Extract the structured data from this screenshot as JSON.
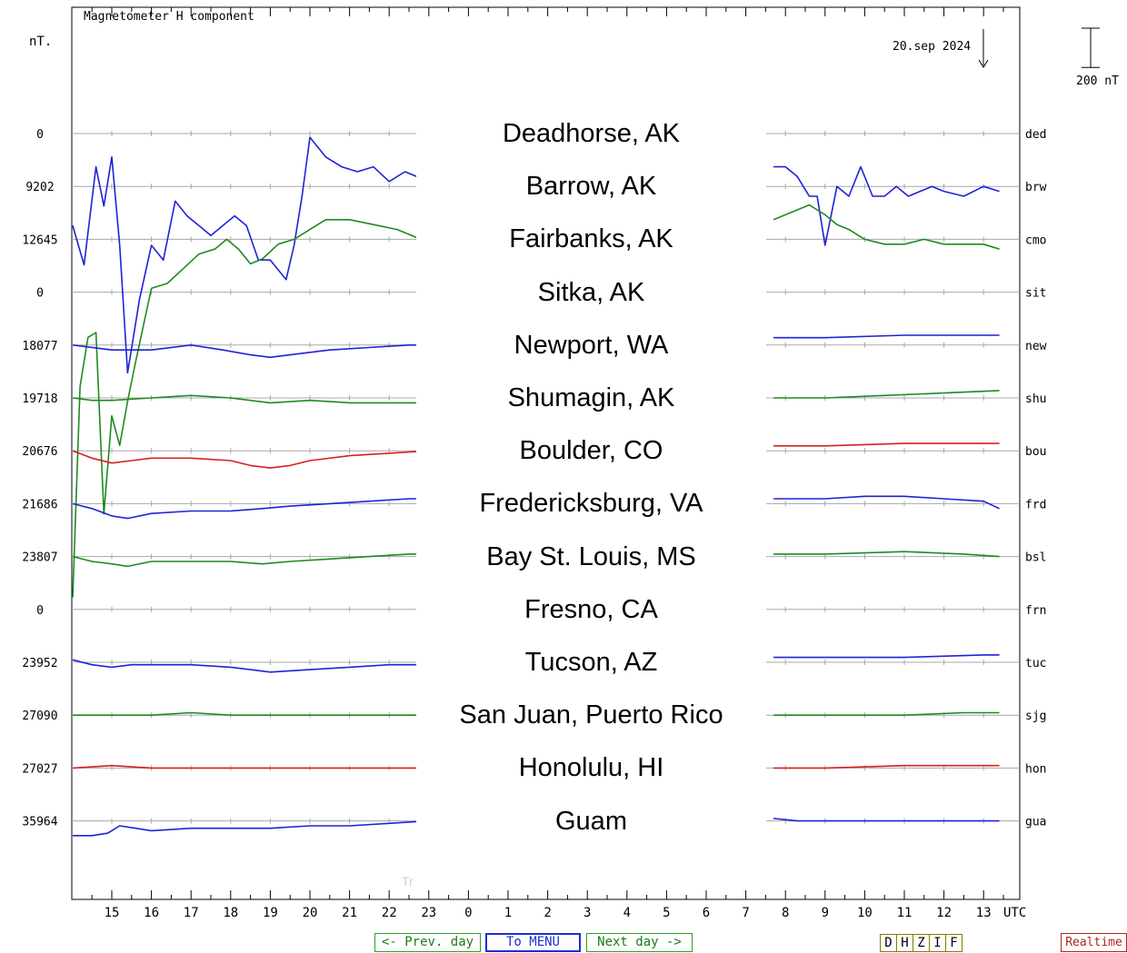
{
  "chart_data": {
    "type": "line",
    "title": "Magnetometer H component",
    "unit_label": "nT.",
    "date_label": "20.sep 2024",
    "scale_label": "200 nT",
    "x_ticks": [
      "15",
      "16",
      "17",
      "18",
      "19",
      "20",
      "21",
      "22",
      "23",
      "0",
      "1",
      "2",
      "3",
      "4",
      "5",
      "6",
      "7",
      "8",
      "9",
      "10",
      "11",
      "12",
      "13"
    ],
    "x_unit": "UTC",
    "scale_nT": 200,
    "series": [
      {
        "code": "ded",
        "baseline": "0",
        "color": "#808080",
        "wave": null
      },
      {
        "code": "brw",
        "baseline": "9202",
        "color": "#1f22d8",
        "wave": "storm",
        "x": [
          14.0,
          14.3,
          14.6,
          14.8,
          15.0,
          15.2,
          15.4,
          15.7,
          16.0,
          16.3,
          16.6,
          16.9,
          17.2,
          17.5,
          17.8,
          18.1,
          18.4,
          18.7,
          19.0,
          19.4,
          19.6,
          19.8,
          20.0,
          20.4,
          20.8,
          21.2,
          21.6,
          22.0,
          22.4,
          22.7,
          23.0,
          31.7,
          32.0,
          32.3,
          32.6,
          32.8,
          33.0,
          33.3,
          33.6,
          33.9,
          34.2,
          34.5,
          34.8,
          35.1,
          35.4,
          35.7,
          36.0,
          36.5,
          37.0,
          37.4
        ],
        "y": [
          -80,
          -160,
          40,
          -40,
          60,
          -120,
          -380,
          -230,
          -120,
          -150,
          -30,
          -60,
          -80,
          -100,
          -80,
          -60,
          -80,
          -150,
          -150,
          -190,
          -120,
          -20,
          100,
          60,
          40,
          30,
          40,
          10,
          30,
          20,
          40,
          40,
          40,
          20,
          -20,
          -20,
          -120,
          0,
          -20,
          40,
          -20,
          -20,
          0,
          -20,
          -10,
          0,
          -10,
          -20,
          0,
          -10
        ]
      },
      {
        "code": "cmo",
        "baseline": "12645",
        "color": "#1f8a1f",
        "wave": "storm",
        "x": [
          14.0,
          14.2,
          14.4,
          14.6,
          14.8,
          15.0,
          15.2,
          15.4,
          15.6,
          16.0,
          16.4,
          16.8,
          17.2,
          17.6,
          17.9,
          18.2,
          18.5,
          18.8,
          19.2,
          19.6,
          20.0,
          20.4,
          21.0,
          21.6,
          22.2,
          22.8,
          23.0,
          31.7,
          32.0,
          32.3,
          32.6,
          32.8,
          33.0,
          33.3,
          33.6,
          34.0,
          34.5,
          35.0,
          35.5,
          36.0,
          36.5,
          37.0,
          37.4
        ],
        "y": [
          -730,
          -300,
          -200,
          -190,
          -560,
          -360,
          -420,
          -330,
          -250,
          -100,
          -90,
          -60,
          -30,
          -20,
          0,
          -20,
          -50,
          -40,
          -10,
          0,
          20,
          40,
          40,
          30,
          20,
          0,
          0,
          40,
          50,
          60,
          70,
          60,
          50,
          30,
          20,
          0,
          -10,
          -10,
          0,
          -10,
          -10,
          -10,
          -20
        ]
      },
      {
        "code": "sit",
        "baseline": "0",
        "color": "#808080",
        "wave": null
      },
      {
        "code": "new",
        "baseline": "18077",
        "color": "#1f22d8",
        "wave": "quiet",
        "x": [
          14.0,
          15.0,
          16.0,
          17.0,
          17.8,
          18.5,
          19.0,
          19.5,
          20.5,
          21.5,
          22.5,
          23.0,
          31.7,
          33.0,
          35.0,
          37.0,
          37.4
        ],
        "y": [
          0,
          -10,
          -10,
          0,
          -10,
          -20,
          -25,
          -20,
          -10,
          -5,
          0,
          0,
          15,
          15,
          20,
          20,
          20
        ]
      },
      {
        "code": "shu",
        "baseline": "19718",
        "color": "#1f8a1f",
        "wave": "quiet",
        "x": [
          14.0,
          14.5,
          15.0,
          16.0,
          17.0,
          18.0,
          19.0,
          20.0,
          21.0,
          22.0,
          23.0,
          31.7,
          33.0,
          34.5,
          36.0,
          37.4
        ],
        "y": [
          0,
          -5,
          -5,
          0,
          5,
          0,
          -10,
          -5,
          -10,
          -10,
          -10,
          0,
          0,
          5,
          10,
          15
        ]
      },
      {
        "code": "bou",
        "baseline": "20676",
        "color": "#d62020",
        "wave": "quiet",
        "x": [
          14.0,
          14.5,
          15.0,
          15.5,
          16.0,
          17.0,
          18.0,
          18.5,
          19.0,
          19.5,
          20.0,
          21.0,
          22.0,
          23.0,
          31.7,
          33.0,
          35.0,
          37.4
        ],
        "y": [
          0,
          -15,
          -25,
          -20,
          -15,
          -15,
          -20,
          -30,
          -35,
          -30,
          -20,
          -10,
          -5,
          0,
          10,
          10,
          15,
          15
        ]
      },
      {
        "code": "frd",
        "baseline": "21686",
        "color": "#1f22d8",
        "wave": "quiet",
        "x": [
          14.0,
          14.5,
          15.0,
          15.4,
          16.0,
          17.0,
          18.0,
          18.8,
          19.5,
          20.5,
          21.5,
          22.5,
          23.0,
          31.7,
          33.0,
          34.0,
          35.0,
          36.0,
          37.0,
          37.4
        ],
        "y": [
          0,
          -10,
          -25,
          -30,
          -20,
          -15,
          -15,
          -10,
          -5,
          0,
          5,
          10,
          10,
          10,
          10,
          15,
          15,
          10,
          5,
          -10
        ]
      },
      {
        "code": "bsl",
        "baseline": "23807",
        "color": "#1f8a1f",
        "wave": "quiet",
        "x": [
          14.0,
          14.5,
          15.0,
          15.4,
          16.0,
          17.0,
          18.0,
          18.8,
          19.5,
          20.5,
          21.5,
          22.5,
          23.0,
          31.7,
          33.0,
          35.0,
          36.5,
          37.4
        ],
        "y": [
          0,
          -10,
          -15,
          -20,
          -10,
          -10,
          -10,
          -15,
          -10,
          -5,
          0,
          5,
          5,
          5,
          5,
          10,
          5,
          0
        ]
      },
      {
        "code": "frn",
        "baseline": "0",
        "color": "#808080",
        "wave": null
      },
      {
        "code": "tuc",
        "baseline": "23952",
        "color": "#1f22d8",
        "wave": "quiet",
        "x": [
          14.0,
          14.5,
          15.0,
          15.5,
          16.0,
          17.0,
          18.0,
          18.5,
          19.0,
          20.0,
          21.0,
          22.0,
          23.0,
          31.7,
          33.0,
          35.0,
          37.0,
          37.4
        ],
        "y": [
          5,
          -5,
          -10,
          -5,
          -5,
          -5,
          -10,
          -15,
          -20,
          -15,
          -10,
          -5,
          -5,
          10,
          10,
          10,
          15,
          15
        ]
      },
      {
        "code": "sjg",
        "baseline": "27090",
        "color": "#1f8a1f",
        "wave": "quiet",
        "x": [
          14.0,
          15.0,
          16.0,
          17.0,
          18.0,
          19.0,
          20.0,
          21.0,
          22.0,
          23.0,
          31.7,
          33.0,
          35.0,
          36.5,
          37.4
        ],
        "y": [
          0,
          0,
          0,
          5,
          0,
          0,
          0,
          0,
          0,
          0,
          0,
          0,
          0,
          5,
          5
        ]
      },
      {
        "code": "hon",
        "baseline": "27027",
        "color": "#d62020",
        "wave": "quiet",
        "x": [
          14.0,
          15.0,
          16.0,
          17.0,
          18.0,
          19.0,
          20.0,
          21.0,
          22.0,
          23.0,
          31.7,
          33.0,
          35.0,
          37.4
        ],
        "y": [
          0,
          5,
          0,
          0,
          0,
          0,
          0,
          0,
          0,
          0,
          0,
          0,
          5,
          5
        ]
      },
      {
        "code": "gua",
        "baseline": "35964",
        "color": "#1f22d8",
        "wave": "quiet",
        "x": [
          14.0,
          14.5,
          14.9,
          15.2,
          15.6,
          16.0,
          17.0,
          18.0,
          19.0,
          20.0,
          21.0,
          22.0,
          23.0,
          31.7,
          32.3,
          33.0,
          35.0,
          37.4
        ],
        "y": [
          -30,
          -30,
          -25,
          -10,
          -15,
          -20,
          -15,
          -15,
          -15,
          -10,
          -10,
          -5,
          0,
          5,
          0,
          0,
          0,
          0
        ]
      }
    ]
  },
  "overlay": {
    "stations": [
      "Deadhorse, AK",
      "Barrow, AK",
      "Fairbanks, AK",
      "Sitka, AK",
      "Newport, WA",
      "Shumagin, AK",
      "Boulder, CO",
      "Fredericksburg, VA",
      "Bay St. Louis, MS",
      "Fresno, CA",
      "Tucson, AZ",
      "San Juan, Puerto Rico",
      "Honolulu, HI",
      "Guam"
    ],
    "faint_text": "Tr"
  },
  "nav": {
    "prev_label": "<- Prev. day",
    "menu_label": "To MENU",
    "next_label": "Next day ->",
    "components": [
      "D",
      "H",
      "Z",
      "I",
      "F"
    ],
    "realtime_label": "Realtime"
  }
}
